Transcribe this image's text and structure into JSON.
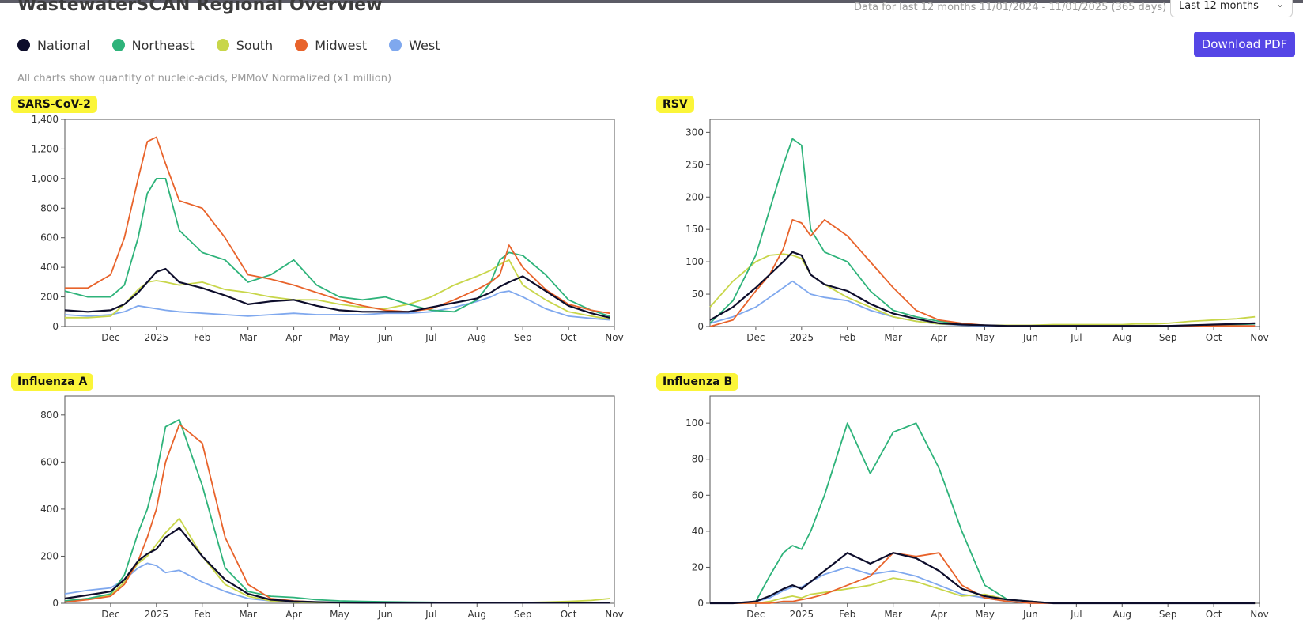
{
  "header": {
    "title": "WastewaterSCAN Regional Overview",
    "date_range": "Data for last 12 months 11/01/2024 - 11/01/2025 (365 days)",
    "range_select": "Last 12 months",
    "download_label": "Download PDF",
    "note": "All charts show quantity of nucleic-acids, PMMoV Normalized (x1 million)"
  },
  "legend": [
    {
      "label": "National",
      "color": "#0d0d2b"
    },
    {
      "label": "Northeast",
      "color": "#2eb37a"
    },
    {
      "label": "South",
      "color": "#c8d64a"
    },
    {
      "label": "Midwest",
      "color": "#e8632b"
    },
    {
      "label": "West",
      "color": "#7fa8ee"
    }
  ],
  "x_ticks": [
    "Dec",
    "2025",
    "Feb",
    "Mar",
    "Apr",
    "May",
    "Jun",
    "Jul",
    "Aug",
    "Sep",
    "Oct",
    "Nov"
  ],
  "chart_data": [
    {
      "type": "line",
      "title": "SARS-CoV-2",
      "x_months": [
        0,
        0.5,
        1,
        1.3,
        1.6,
        1.8,
        2,
        2.2,
        2.5,
        3,
        3.5,
        4,
        4.5,
        5,
        5.5,
        6,
        6.5,
        7,
        7.5,
        8,
        8.5,
        9,
        9.3,
        9.5,
        9.7,
        10,
        10.5,
        11,
        11.5,
        11.9
      ],
      "xlim": [
        0,
        12
      ],
      "ylim": [
        0,
        1400
      ],
      "yticks": [
        0,
        200,
        400,
        600,
        800,
        1000,
        1200,
        1400
      ],
      "ytick_labels": [
        "0",
        "200",
        "400",
        "600",
        "800",
        "1,000",
        "1,200",
        "1,400"
      ],
      "series": [
        {
          "name": "National",
          "values": [
            110,
            100,
            110,
            150,
            230,
            300,
            370,
            390,
            300,
            260,
            210,
            150,
            170,
            180,
            140,
            110,
            100,
            100,
            100,
            130,
            160,
            190,
            230,
            270,
            300,
            340,
            240,
            140,
            90,
            60
          ]
        },
        {
          "name": "Northeast",
          "values": [
            240,
            200,
            200,
            280,
            600,
            900,
            1000,
            1000,
            650,
            500,
            450,
            300,
            350,
            450,
            280,
            200,
            180,
            200,
            150,
            110,
            100,
            180,
            300,
            450,
            500,
            480,
            350,
            180,
            110,
            70
          ]
        },
        {
          "name": "South",
          "values": [
            60,
            60,
            70,
            150,
            250,
            300,
            310,
            300,
            280,
            300,
            250,
            230,
            200,
            180,
            180,
            150,
            130,
            120,
            150,
            200,
            280,
            340,
            380,
            420,
            450,
            280,
            180,
            100,
            70,
            50
          ]
        },
        {
          "name": "Midwest",
          "values": [
            260,
            260,
            350,
            600,
            1000,
            1250,
            1280,
            1100,
            850,
            800,
            600,
            350,
            320,
            280,
            230,
            180,
            140,
            110,
            100,
            120,
            180,
            250,
            300,
            350,
            550,
            400,
            250,
            150,
            110,
            90
          ]
        },
        {
          "name": "West",
          "values": [
            80,
            70,
            80,
            100,
            140,
            130,
            120,
            110,
            100,
            90,
            80,
            70,
            80,
            90,
            80,
            80,
            80,
            90,
            90,
            100,
            130,
            170,
            200,
            230,
            240,
            200,
            120,
            70,
            55,
            45
          ]
        }
      ]
    },
    {
      "type": "line",
      "title": "RSV",
      "x_months": [
        0,
        0.5,
        1,
        1.3,
        1.6,
        1.8,
        2,
        2.2,
        2.5,
        3,
        3.5,
        4,
        4.5,
        5,
        5.5,
        6,
        6.5,
        7,
        7.5,
        8,
        8.5,
        9,
        9.3,
        9.5,
        9.7,
        10,
        10.5,
        11,
        11.5,
        11.9
      ],
      "xlim": [
        0,
        12
      ],
      "ylim": [
        0,
        320
      ],
      "yticks": [
        0,
        50,
        100,
        150,
        200,
        250,
        300
      ],
      "ytick_labels": [
        "0",
        "50",
        "100",
        "150",
        "200",
        "250",
        "300"
      ],
      "series": [
        {
          "name": "National",
          "values": [
            10,
            30,
            60,
            80,
            100,
            115,
            110,
            80,
            65,
            55,
            35,
            20,
            12,
            5,
            3,
            2,
            1,
            1,
            1,
            1,
            1,
            1,
            1,
            1,
            1,
            1,
            2,
            3,
            4,
            5
          ]
        },
        {
          "name": "Northeast",
          "values": [
            5,
            40,
            110,
            180,
            250,
            290,
            280,
            150,
            115,
            100,
            55,
            25,
            15,
            8,
            4,
            2,
            1,
            1,
            1,
            1,
            1,
            1,
            1,
            1,
            1,
            1,
            1,
            2,
            3,
            4
          ]
        },
        {
          "name": "South",
          "values": [
            30,
            70,
            100,
            110,
            112,
            110,
            105,
            80,
            65,
            45,
            30,
            15,
            8,
            4,
            3,
            2,
            2,
            2,
            3,
            3,
            3,
            3,
            4,
            4,
            4,
            5,
            8,
            10,
            12,
            15
          ]
        },
        {
          "name": "Midwest",
          "values": [
            0,
            10,
            55,
            80,
            120,
            165,
            160,
            140,
            165,
            140,
            100,
            60,
            25,
            10,
            5,
            2,
            1,
            1,
            1,
            1,
            1,
            1,
            1,
            1,
            1,
            1,
            1,
            1,
            1,
            1
          ]
        },
        {
          "name": "West",
          "values": [
            5,
            15,
            30,
            45,
            60,
            70,
            60,
            50,
            45,
            40,
            25,
            15,
            8,
            4,
            2,
            1,
            1,
            1,
            1,
            1,
            1,
            1,
            1,
            1,
            1,
            1,
            1,
            1,
            1,
            1
          ]
        }
      ]
    },
    {
      "type": "line",
      "title": "Influenza A",
      "x_months": [
        0,
        0.5,
        1,
        1.3,
        1.6,
        1.8,
        2,
        2.2,
        2.5,
        3,
        3.5,
        4,
        4.5,
        5,
        5.5,
        6,
        6.5,
        7,
        7.5,
        8,
        8.5,
        9,
        9.3,
        9.5,
        9.7,
        10,
        10.5,
        11,
        11.5,
        11.9
      ],
      "xlim": [
        0,
        12
      ],
      "ylim": [
        0,
        880
      ],
      "yticks": [
        0,
        200,
        400,
        600,
        800
      ],
      "ytick_labels": [
        "0",
        "200",
        "400",
        "600",
        "800"
      ],
      "series": [
        {
          "name": "National",
          "values": [
            20,
            35,
            50,
            100,
            180,
            210,
            230,
            280,
            320,
            200,
            100,
            40,
            15,
            8,
            5,
            3,
            2,
            2,
            2,
            2,
            2,
            2,
            2,
            2,
            2,
            2,
            2,
            2,
            2,
            2
          ]
        },
        {
          "name": "Northeast",
          "values": [
            10,
            20,
            40,
            120,
            300,
            400,
            550,
            750,
            780,
            500,
            150,
            50,
            30,
            25,
            15,
            10,
            8,
            6,
            5,
            4,
            3,
            3,
            3,
            3,
            3,
            3,
            3,
            3,
            3,
            3
          ]
        },
        {
          "name": "South",
          "values": [
            10,
            20,
            35,
            90,
            170,
            200,
            250,
            300,
            360,
            200,
            80,
            30,
            10,
            5,
            3,
            2,
            2,
            2,
            2,
            2,
            2,
            2,
            2,
            2,
            2,
            3,
            5,
            8,
            12,
            20
          ]
        },
        {
          "name": "Midwest",
          "values": [
            5,
            15,
            30,
            80,
            180,
            280,
            400,
            600,
            760,
            680,
            280,
            80,
            20,
            10,
            5,
            3,
            2,
            2,
            2,
            2,
            2,
            2,
            2,
            2,
            2,
            2,
            2,
            2,
            2,
            2
          ]
        },
        {
          "name": "West",
          "values": [
            40,
            55,
            65,
            100,
            150,
            170,
            160,
            130,
            140,
            90,
            50,
            20,
            10,
            5,
            3,
            2,
            2,
            2,
            2,
            2,
            2,
            2,
            2,
            2,
            2,
            2,
            2,
            2,
            2,
            2
          ]
        }
      ]
    },
    {
      "type": "line",
      "title": "Influenza B",
      "x_months": [
        0,
        0.5,
        1,
        1.3,
        1.6,
        1.8,
        2,
        2.2,
        2.5,
        3,
        3.5,
        4,
        4.5,
        5,
        5.5,
        6,
        6.5,
        7,
        7.5,
        8,
        8.5,
        9,
        9.3,
        9.5,
        9.7,
        10,
        10.5,
        11,
        11.5,
        11.9
      ],
      "xlim": [
        0,
        12
      ],
      "ylim": [
        0,
        115
      ],
      "yticks": [
        0,
        20,
        40,
        60,
        80,
        100
      ],
      "ytick_labels": [
        "0",
        "20",
        "40",
        "60",
        "80",
        "100"
      ],
      "series": [
        {
          "name": "National",
          "values": [
            0,
            0,
            1,
            4,
            8,
            10,
            8,
            12,
            18,
            28,
            22,
            28,
            25,
            18,
            8,
            4,
            2,
            1,
            0,
            0,
            0,
            0,
            0,
            0,
            0,
            0,
            0,
            0,
            0,
            0
          ]
        },
        {
          "name": "Northeast",
          "values": [
            0,
            0,
            1,
            15,
            28,
            32,
            30,
            40,
            60,
            100,
            72,
            95,
            100,
            75,
            40,
            10,
            2,
            1,
            0,
            0,
            0,
            0,
            0,
            0,
            0,
            0,
            0,
            0,
            0,
            0
          ]
        },
        {
          "name": "South",
          "values": [
            0,
            0,
            0,
            1,
            3,
            4,
            3,
            5,
            6,
            8,
            10,
            14,
            12,
            8,
            4,
            5,
            2,
            1,
            0,
            0,
            0,
            0,
            0,
            0,
            0,
            0,
            0,
            0,
            0,
            0
          ]
        },
        {
          "name": "Midwest",
          "values": [
            0,
            0,
            0,
            0,
            1,
            1,
            2,
            3,
            5,
            10,
            15,
            28,
            26,
            28,
            10,
            3,
            1,
            0,
            0,
            0,
            0,
            0,
            0,
            0,
            0,
            0,
            0,
            0,
            0,
            0
          ]
        },
        {
          "name": "West",
          "values": [
            0,
            0,
            1,
            3,
            7,
            9,
            9,
            12,
            16,
            20,
            16,
            18,
            15,
            10,
            5,
            3,
            1,
            0,
            0,
            0,
            0,
            0,
            0,
            0,
            0,
            0,
            0,
            0,
            0,
            0
          ]
        }
      ]
    }
  ]
}
